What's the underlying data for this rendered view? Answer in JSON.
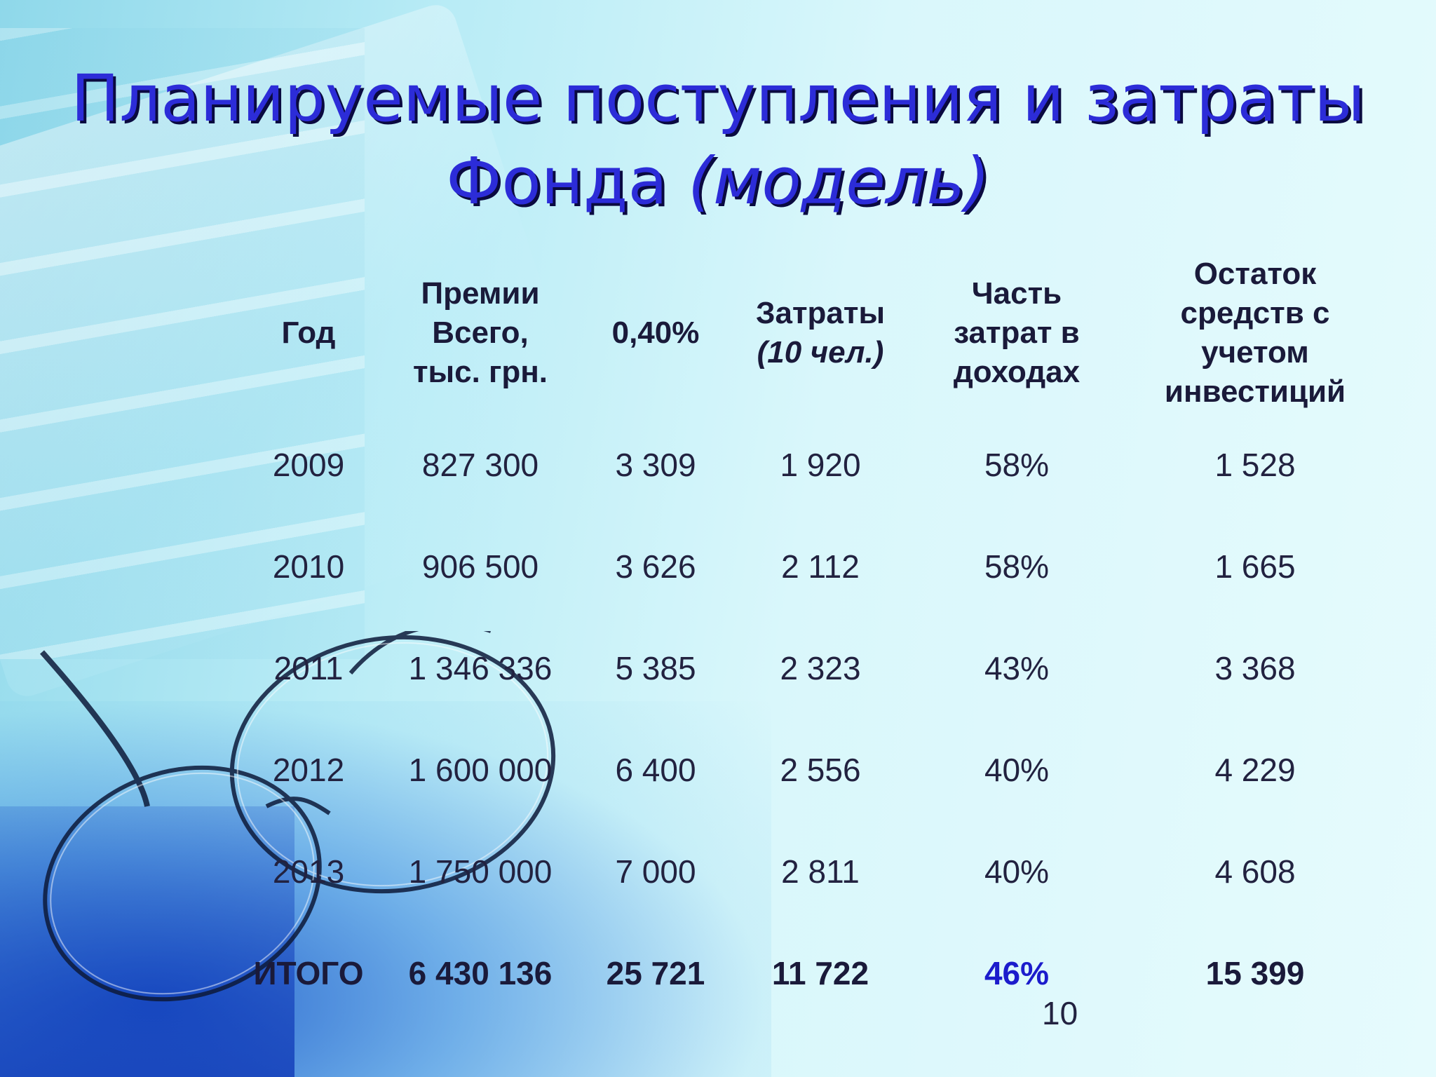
{
  "title": {
    "line1": "Планируемые поступления и затраты",
    "line2_plain": "Фонда ",
    "line2_italic": "(модель)"
  },
  "table": {
    "headers": {
      "year": "Год",
      "premiums": [
        "Премии",
        "Всего,",
        "тыс. грн."
      ],
      "percent": "0,40%",
      "costs": "Затраты",
      "costs_note": "(10 чел.)",
      "share": [
        "Часть",
        "затрат в",
        "доходах"
      ],
      "rest": [
        "Остаток",
        "средств с",
        "учетом",
        "инвестиций"
      ]
    },
    "rows": [
      {
        "year": "2009",
        "premiums": "827 300",
        "percent": "3 309",
        "costs": "1 920",
        "share": "58%",
        "rest": "1 528"
      },
      {
        "year": "2010",
        "premiums": "906 500",
        "percent": "3 626",
        "costs": "2 112",
        "share": "58%",
        "rest": "1 665"
      },
      {
        "year": "2011",
        "premiums": "1 346 336",
        "percent": "5 385",
        "costs": "2 323",
        "share": "43%",
        "rest": "3 368"
      },
      {
        "year": "2012",
        "premiums": "1 600 000",
        "percent": "6 400",
        "costs": "2 556",
        "share": "40%",
        "rest": "4 229"
      },
      {
        "year": "2013",
        "premiums": "1 750 000",
        "percent": "7 000",
        "costs": "2 811",
        "share": "40%",
        "rest": "4 608"
      }
    ],
    "total": {
      "year": "ИТОГО",
      "premiums": "6 430 136",
      "percent": "25 721",
      "costs": "11 722",
      "share": "46%",
      "rest": "15 399"
    }
  },
  "page_number": "10",
  "colors": {
    "title": "#2c2cd8",
    "accent": "#1c1ccc"
  }
}
